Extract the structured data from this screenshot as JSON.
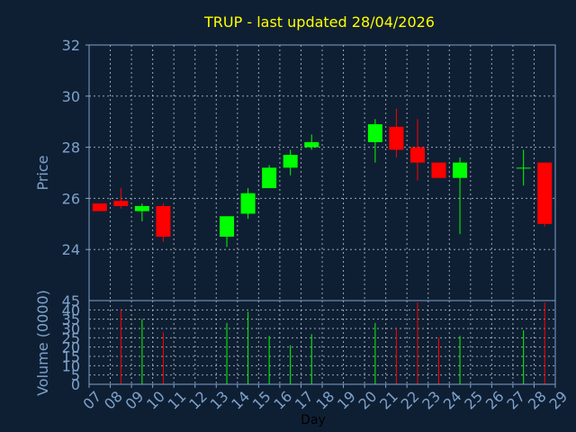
{
  "chart_data": {
    "type": "candlestick",
    "title": "TRUP - last updated 28/04/2026",
    "xlabel": "Day",
    "ylabel": "Price",
    "volume_label": "Volume (0000)",
    "colors": {
      "up": "#00ff00",
      "down": "#ff0000",
      "title": "#ffff00",
      "axis": "#7da2cc",
      "background": "#0f1f33"
    },
    "grid": true,
    "x_ticks": [
      "07",
      "08",
      "09",
      "10",
      "11",
      "12",
      "13",
      "14",
      "15",
      "16",
      "17",
      "18",
      "19",
      "20",
      "21",
      "22",
      "23",
      "24",
      "25",
      "26",
      "27",
      "28",
      "29"
    ],
    "price_ylim": [
      22.0,
      32.0
    ],
    "price_ticks": [
      "32",
      "30",
      "28",
      "26",
      "24"
    ],
    "volume_ylim": [
      0,
      45
    ],
    "volume_ticks": [
      "45",
      "40",
      "35",
      "30",
      "25",
      "20",
      "15",
      "10",
      "5",
      "0"
    ],
    "candles": [
      {
        "day": "07",
        "open": 25.8,
        "high": 25.8,
        "low": 25.5,
        "close": 25.5,
        "volume": 0
      },
      {
        "day": "08",
        "open": 25.9,
        "high": 26.4,
        "low": 25.6,
        "close": 25.7,
        "volume": 40
      },
      {
        "day": "09",
        "open": 25.5,
        "high": 25.8,
        "low": 25.1,
        "close": 25.7,
        "volume": 35
      },
      {
        "day": "10",
        "open": 25.7,
        "high": 25.8,
        "low": 24.3,
        "close": 24.5,
        "volume": 28
      },
      {
        "day": "13",
        "open": 24.5,
        "high": 25.3,
        "low": 24.1,
        "close": 25.3,
        "volume": 33
      },
      {
        "day": "14",
        "open": 25.4,
        "high": 26.4,
        "low": 25.2,
        "close": 26.2,
        "volume": 39
      },
      {
        "day": "15",
        "open": 26.4,
        "high": 27.3,
        "low": 26.4,
        "close": 27.2,
        "volume": 26
      },
      {
        "day": "16",
        "open": 27.2,
        "high": 27.9,
        "low": 26.9,
        "close": 27.7,
        "volume": 21
      },
      {
        "day": "17",
        "open": 28.0,
        "high": 28.5,
        "low": 27.9,
        "close": 28.2,
        "volume": 27
      },
      {
        "day": "20",
        "open": 28.2,
        "high": 29.1,
        "low": 27.4,
        "close": 28.9,
        "volume": 33
      },
      {
        "day": "21",
        "open": 28.8,
        "high": 29.5,
        "low": 27.6,
        "close": 27.9,
        "volume": 30
      },
      {
        "day": "22",
        "open": 28.0,
        "high": 29.1,
        "low": 26.7,
        "close": 27.4,
        "volume": 44
      },
      {
        "day": "23",
        "open": 27.4,
        "high": 27.4,
        "low": 26.8,
        "close": 26.8,
        "volume": 25
      },
      {
        "day": "24",
        "open": 26.8,
        "high": 27.6,
        "low": 24.6,
        "close": 27.4,
        "volume": 26
      },
      {
        "day": "27",
        "open": 27.2,
        "high": 27.9,
        "low": 26.5,
        "close": 27.2,
        "volume": 29
      },
      {
        "day": "28",
        "open": 27.4,
        "high": 27.4,
        "low": 24.9,
        "close": 25.0,
        "volume": 44
      }
    ]
  }
}
